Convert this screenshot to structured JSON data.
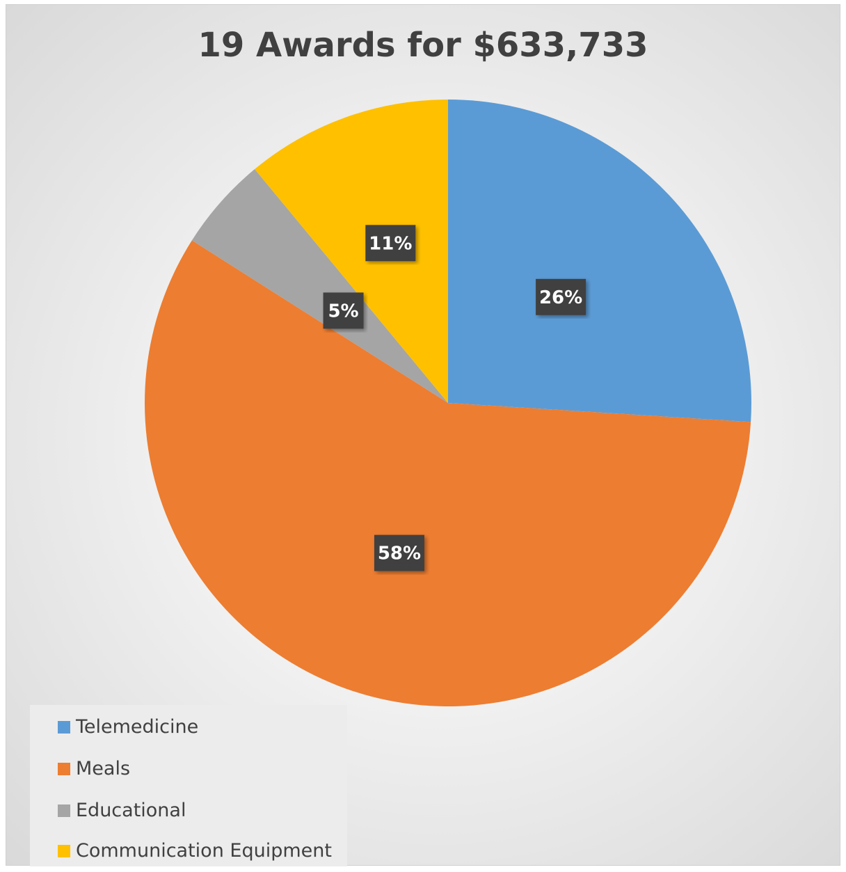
{
  "chart_data": {
    "type": "pie",
    "title": "19 Awards for $633,733",
    "legend_position": "bottom-left",
    "slices": [
      {
        "label": "Telemedicine",
        "value": 26,
        "display": "26%",
        "color": "#5B9BD5"
      },
      {
        "label": "Meals",
        "value": 58,
        "display": "58%",
        "color": "#ED7D31"
      },
      {
        "label": "Educational",
        "value": 5,
        "display": "5%",
        "color": "#A5A5A5"
      },
      {
        "label": "Communication Equipment",
        "value": 11,
        "display": "11%",
        "color": "#FFC000"
      }
    ]
  }
}
